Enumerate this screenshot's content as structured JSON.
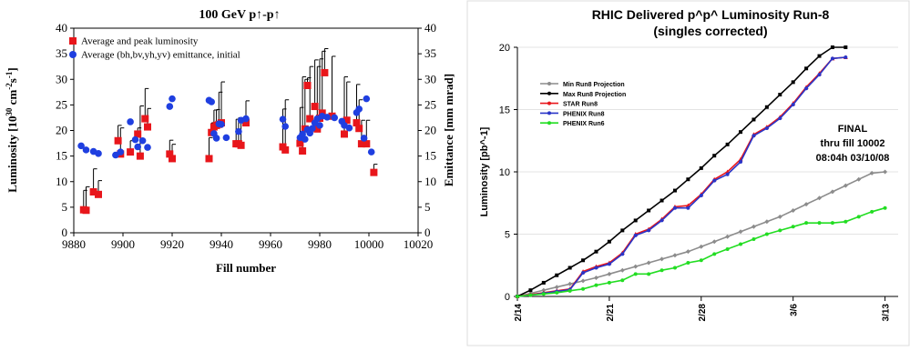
{
  "chart_data": [
    {
      "type": "scatter",
      "title": "100 GeV p↑-p↑",
      "xlabel": "Fill number",
      "ylabel": "Luminosity [10^30 cm^-2 s^-1]",
      "ylabel_parts": [
        "Luminosity [10",
        "30",
        " cm",
        "-2",
        "s",
        "-1",
        "]"
      ],
      "y2label": "Emittance [mm mrad]",
      "xlim": [
        9880,
        10020
      ],
      "ylim": [
        0,
        40
      ],
      "y2lim": [
        0,
        40
      ],
      "xticks": [
        "9880",
        "9900",
        "9920",
        "9940",
        "9960",
        "9980",
        "10000",
        "10020"
      ],
      "yticks": [
        "0",
        "5",
        "10",
        "15",
        "20",
        "25",
        "30",
        "35",
        "40"
      ],
      "y2ticks": [
        "0",
        "5",
        "10",
        "15",
        "20",
        "25",
        "30",
        "35",
        "40"
      ],
      "legend_position": "top-left",
      "colors": {
        "luminosity": "#e8161b",
        "emittance": "#1f3fe0",
        "peak_bar": "#000000"
      },
      "series": [
        {
          "name": "Average and peak luminosity",
          "marker": "square",
          "points": [
            {
              "x": 9884,
              "y": 4.5,
              "peak": 8.3
            },
            {
              "x": 9885,
              "y": 4.4,
              "peak": 9.0
            },
            {
              "x": 9888,
              "y": 8.0,
              "peak": 12.5
            },
            {
              "x": 9890,
              "y": 7.5,
              "peak": 10.2
            },
            {
              "x": 9898,
              "y": 18.0,
              "peak": 21.0
            },
            {
              "x": 9899,
              "y": 15.4,
              "peak": 20.5
            },
            {
              "x": 9903,
              "y": 15.8,
              "peak": 18.0
            },
            {
              "x": 9906,
              "y": 19.3,
              "peak": 20.5
            },
            {
              "x": 9907,
              "y": 15.0,
              "peak": 24.8
            },
            {
              "x": 9909,
              "y": 22.3,
              "peak": 28.2
            },
            {
              "x": 9910,
              "y": 20.7,
              "peak": 24.3
            },
            {
              "x": 9919,
              "y": 15.4,
              "peak": 18.1
            },
            {
              "x": 9920,
              "y": 14.5,
              "peak": 17.3
            },
            {
              "x": 9935,
              "y": 14.5,
              "peak": 18.6
            },
            {
              "x": 9936,
              "y": 19.6,
              "peak": 21.5
            },
            {
              "x": 9937,
              "y": 20.7,
              "peak": 24.0
            },
            {
              "x": 9938,
              "y": 21.0,
              "peak": 24.1
            },
            {
              "x": 9939,
              "y": 21.2,
              "peak": 27.5
            },
            {
              "x": 9940,
              "y": 21.5,
              "peak": 29.5
            },
            {
              "x": 9946,
              "y": 17.4,
              "peak": 22.2
            },
            {
              "x": 9947,
              "y": 17.4,
              "peak": 22.5
            },
            {
              "x": 9948,
              "y": 17.1,
              "peak": 21.8
            },
            {
              "x": 9950,
              "y": 21.5,
              "peak": 25.8
            },
            {
              "x": 9965,
              "y": 16.8,
              "peak": 24.2
            },
            {
              "x": 9966,
              "y": 16.2,
              "peak": 26.0
            },
            {
              "x": 9972,
              "y": 17.5,
              "peak": 24.5
            },
            {
              "x": 9973,
              "y": 16.0,
              "peak": 30.5
            },
            {
              "x": 9974,
              "y": 20.3,
              "peak": 30.0
            },
            {
              "x": 9975,
              "y": 28.8,
              "peak": 30.3
            },
            {
              "x": 9976,
              "y": 22.3,
              "peak": 32.5
            },
            {
              "x": 9978,
              "y": 24.7,
              "peak": 33.8
            },
            {
              "x": 9979,
              "y": 20.3,
              "peak": 32.5
            },
            {
              "x": 9980,
              "y": 22.4,
              "peak": 34.0
            },
            {
              "x": 9981,
              "y": 23.4,
              "peak": 35.5
            },
            {
              "x": 9982,
              "y": 31.3,
              "peak": 36.0
            },
            {
              "x": 9985,
              "y": 22.8,
              "peak": 34.5
            },
            {
              "x": 9990,
              "y": 19.3,
              "peak": 30.5
            },
            {
              "x": 9991,
              "y": 22.0,
              "peak": 29.5
            },
            {
              "x": 9995,
              "y": 21.5,
              "peak": 29.0
            },
            {
              "x": 9996,
              "y": 20.4,
              "peak": 26.0
            },
            {
              "x": 9997,
              "y": 17.4,
              "peak": 22.0
            },
            {
              "x": 9999,
              "y": 17.4,
              "peak": 22.0
            },
            {
              "x": 10002,
              "y": 11.8,
              "peak": 13.4
            }
          ]
        },
        {
          "name": "Average (bh,bv,yh,yv) emittance, initial",
          "marker": "circle",
          "points": [
            {
              "x": 9883,
              "y": 17.0
            },
            {
              "x": 9885,
              "y": 16.2
            },
            {
              "x": 9888,
              "y": 15.9
            },
            {
              "x": 9890,
              "y": 15.5
            },
            {
              "x": 9897,
              "y": 15.2
            },
            {
              "x": 9899,
              "y": 15.8
            },
            {
              "x": 9903,
              "y": 21.7
            },
            {
              "x": 9905,
              "y": 18.2
            },
            {
              "x": 9906,
              "y": 16.8
            },
            {
              "x": 9908,
              "y": 18.0
            },
            {
              "x": 9910,
              "y": 16.7
            },
            {
              "x": 9919,
              "y": 24.7
            },
            {
              "x": 9920,
              "y": 26.2
            },
            {
              "x": 9935,
              "y": 25.9
            },
            {
              "x": 9936,
              "y": 25.6
            },
            {
              "x": 9937,
              "y": 19.4
            },
            {
              "x": 9938,
              "y": 18.5
            },
            {
              "x": 9939,
              "y": 21.3
            },
            {
              "x": 9940,
              "y": 21.2
            },
            {
              "x": 9942,
              "y": 18.6
            },
            {
              "x": 9947,
              "y": 19.8
            },
            {
              "x": 9948,
              "y": 22.0
            },
            {
              "x": 9950,
              "y": 22.3
            },
            {
              "x": 9965,
              "y": 22.2
            },
            {
              "x": 9966,
              "y": 20.8
            },
            {
              "x": 9972,
              "y": 18.6
            },
            {
              "x": 9973,
              "y": 19.3
            },
            {
              "x": 9974,
              "y": 18.3
            },
            {
              "x": 9975,
              "y": 20.2
            },
            {
              "x": 9976,
              "y": 19.5
            },
            {
              "x": 9977,
              "y": 20.4
            },
            {
              "x": 9978,
              "y": 21.5
            },
            {
              "x": 9979,
              "y": 22.3
            },
            {
              "x": 9980,
              "y": 21.0
            },
            {
              "x": 9981,
              "y": 22.8
            },
            {
              "x": 9983,
              "y": 22.6
            },
            {
              "x": 9986,
              "y": 22.5
            },
            {
              "x": 9989,
              "y": 21.8
            },
            {
              "x": 9990,
              "y": 21.0
            },
            {
              "x": 9992,
              "y": 20.5
            },
            {
              "x": 9995,
              "y": 23.5
            },
            {
              "x": 9996,
              "y": 24.2
            },
            {
              "x": 9998,
              "y": 18.5
            },
            {
              "x": 9999,
              "y": 26.2
            },
            {
              "x": 10001,
              "y": 15.8
            }
          ]
        }
      ]
    },
    {
      "type": "line",
      "title": "RHIC Delivered p^p^ Luminosity Run-8",
      "subtitle": "(singles corrected)",
      "xlabel": "",
      "ylabel": "Luminosity [pb^-1]",
      "x_tick_labels": [
        "2/14",
        "2/21",
        "2/28",
        "3/6",
        "3/13"
      ],
      "x_tick_days": [
        0,
        7,
        14,
        21,
        28
      ],
      "xlim": [
        0,
        29
      ],
      "ylim": [
        0,
        20
      ],
      "yticks": [
        "0",
        "5",
        "10",
        "15",
        "20"
      ],
      "grid": true,
      "legend_position": "top-left",
      "annotation": [
        "FINAL",
        "thru fill 10002",
        "08:04h 03/10/08"
      ],
      "series": [
        {
          "name": "Min Run8 Projection",
          "color": "#8c8c8c",
          "marker": "diamond",
          "x": [
            0,
            1,
            2,
            3,
            4,
            5,
            6,
            7,
            8,
            9,
            10,
            11,
            12,
            13,
            14,
            15,
            16,
            17,
            18,
            19,
            20,
            21,
            22,
            23,
            24,
            25,
            26,
            27,
            28
          ],
          "y": [
            0,
            0.25,
            0.5,
            0.75,
            1.0,
            1.25,
            1.5,
            1.8,
            2.1,
            2.4,
            2.7,
            3.0,
            3.3,
            3.6,
            4.0,
            4.4,
            4.8,
            5.2,
            5.6,
            6.0,
            6.4,
            6.9,
            7.4,
            7.9,
            8.4,
            8.9,
            9.4,
            9.9,
            10.0
          ]
        },
        {
          "name": "Max Run8 Projection",
          "color": "#000000",
          "marker": "square",
          "x": [
            0,
            1,
            2,
            3,
            4,
            5,
            6,
            7,
            8,
            9,
            10,
            11,
            12,
            13,
            14,
            15,
            16,
            17,
            18,
            19,
            20,
            21,
            22,
            23,
            24,
            25
          ],
          "y": [
            0,
            0.5,
            1.1,
            1.7,
            2.3,
            2.9,
            3.6,
            4.4,
            5.3,
            6.1,
            6.9,
            7.7,
            8.5,
            9.4,
            10.3,
            11.3,
            12.2,
            13.2,
            14.2,
            15.2,
            16.2,
            17.2,
            18.3,
            19.3,
            20.0,
            20.0
          ]
        },
        {
          "name": "STAR Run8",
          "color": "#e8161b",
          "marker": "triangle",
          "x": [
            0,
            1,
            2,
            3,
            4,
            5,
            6,
            7,
            8,
            9,
            10,
            11,
            12,
            13,
            14,
            15,
            16,
            17,
            18,
            19,
            20,
            21,
            22,
            23,
            24,
            25
          ],
          "y": [
            0,
            0.15,
            0.3,
            0.45,
            0.6,
            2.0,
            2.4,
            2.7,
            3.5,
            5.0,
            5.4,
            6.2,
            7.2,
            7.3,
            8.2,
            9.4,
            10.0,
            11.0,
            13.0,
            13.6,
            14.4,
            15.5,
            16.8,
            17.9,
            19.1,
            19.2
          ]
        },
        {
          "name": "PHENIX Run8",
          "color": "#2a35c8",
          "marker": "circle",
          "x": [
            0,
            1,
            2,
            3,
            4,
            5,
            6,
            7,
            8,
            9,
            10,
            11,
            12,
            13,
            14,
            15,
            16,
            17,
            18,
            19,
            20,
            21,
            22,
            23,
            24,
            25
          ],
          "y": [
            0,
            0.1,
            0.25,
            0.4,
            0.55,
            1.9,
            2.3,
            2.6,
            3.4,
            4.9,
            5.3,
            6.1,
            7.1,
            7.1,
            8.1,
            9.3,
            9.8,
            10.8,
            12.9,
            13.5,
            14.3,
            15.4,
            16.7,
            17.8,
            19.1,
            19.2
          ]
        },
        {
          "name": "PHENIX Run6",
          "color": "#22dd22",
          "marker": "circle",
          "x": [
            0,
            1,
            2,
            3,
            4,
            5,
            6,
            7,
            8,
            9,
            10,
            11,
            12,
            13,
            14,
            15,
            16,
            17,
            18,
            19,
            20,
            21,
            22,
            23,
            24,
            25,
            26,
            27,
            28
          ],
          "y": [
            0,
            0.1,
            0.2,
            0.3,
            0.45,
            0.6,
            0.9,
            1.1,
            1.3,
            1.8,
            1.8,
            2.1,
            2.3,
            2.7,
            2.9,
            3.4,
            3.8,
            4.2,
            4.6,
            5.0,
            5.3,
            5.6,
            5.9,
            5.9,
            5.9,
            6.0,
            6.4,
            6.8,
            7.1
          ]
        }
      ]
    }
  ]
}
